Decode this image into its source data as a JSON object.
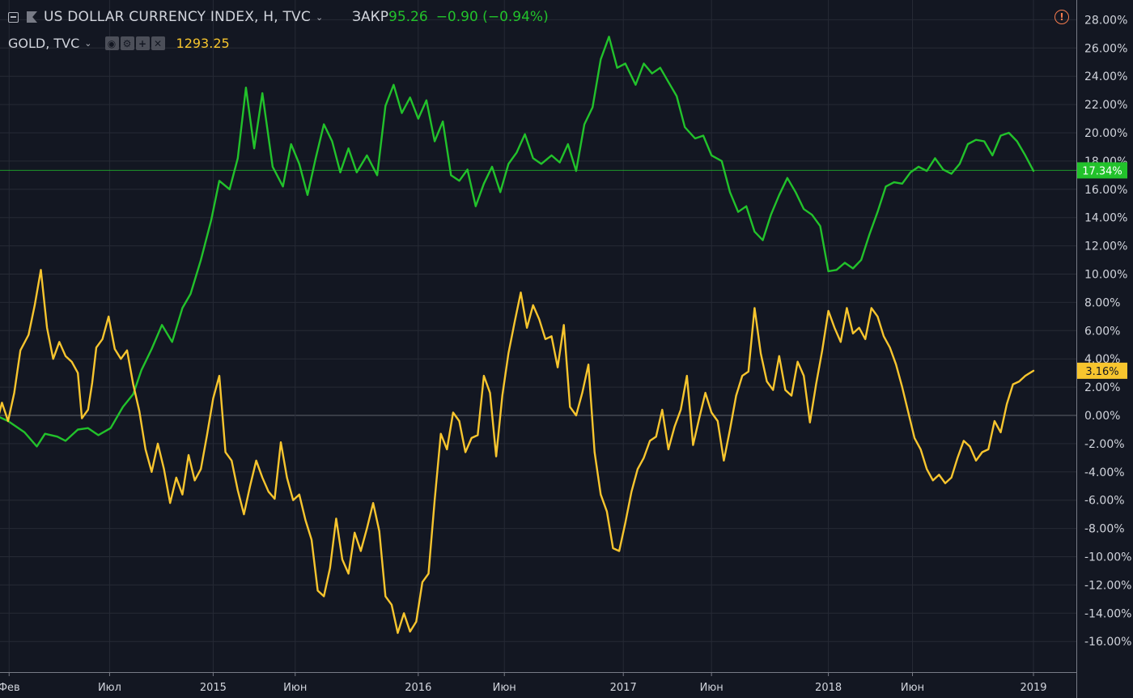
{
  "legend": {
    "main_symbol": "US DOLLAR CURRENCY INDEX, H, TVC",
    "close_label": "ЗАКР",
    "close_value": "95.26",
    "change": "−0.90 (−0.94%)",
    "compare_symbol": "GOLD, TVC",
    "compare_value": "1293.25",
    "compare_controls": [
      "eye-icon",
      "gear-icon",
      "plus-icon",
      "close-icon"
    ]
  },
  "alert_icon": "exclamation-circle-icon",
  "colors": {
    "background": "#131722",
    "grid": "#262a35",
    "dxy": "#22c22b",
    "gold": "#f7c52e",
    "axis_text": "#d1d4dc",
    "alert": "#f77c4e"
  },
  "chart_data": {
    "type": "line",
    "y_unit": "%",
    "ylim": [
      -17.5,
      28.8
    ],
    "y_ticks": [
      "28.00%",
      "26.00%",
      "24.00%",
      "22.00%",
      "20.00%",
      "18.00%",
      "16.00%",
      "14.00%",
      "12.00%",
      "10.00%",
      "8.00%",
      "6.00%",
      "4.00%",
      "2.00%",
      "0.00%",
      "-2.00%",
      "-4.00%",
      "-6.00%",
      "-8.00%",
      "-10.00%",
      "-12.00%",
      "-14.00%",
      "-16.00%"
    ],
    "x_ticks": [
      "Фев",
      "Июл",
      "2015",
      "Июн",
      "2016",
      "Июн",
      "2017",
      "Июн",
      "2018",
      "Июн",
      "2019"
    ],
    "x_tick_times": [
      0.05,
      4.95,
      10.0,
      14.0,
      20.0,
      24.2,
      30.0,
      34.3,
      40.0,
      44.1,
      50.0
    ],
    "xlim": [
      -0.6,
      51.9
    ],
    "grid": true,
    "last_labels": [
      {
        "series": "DXY",
        "value": 17.34,
        "text": "17.34%"
      },
      {
        "series": "GOLD",
        "value": 3.16,
        "text": "3.16%"
      }
    ],
    "series": [
      {
        "name": "US DOLLAR CURRENCY INDEX, H, TVC",
        "color": "#22c22b",
        "points": [
          [
            -0.6,
            0
          ],
          [
            0,
            -0.4
          ],
          [
            0.8,
            -1.2
          ],
          [
            1.4,
            -2.2
          ],
          [
            1.8,
            -1.3
          ],
          [
            2.4,
            -1.5
          ],
          [
            2.8,
            -1.8
          ],
          [
            3.4,
            -1.0
          ],
          [
            3.9,
            -0.9
          ],
          [
            4.4,
            -1.4
          ],
          [
            5.0,
            -0.9
          ],
          [
            5.6,
            0.6
          ],
          [
            6.1,
            1.5
          ],
          [
            6.5,
            3.2
          ],
          [
            7.0,
            4.7
          ],
          [
            7.5,
            6.4
          ],
          [
            8.0,
            5.2
          ],
          [
            8.5,
            7.6
          ],
          [
            8.9,
            8.6
          ],
          [
            9.4,
            11.0
          ],
          [
            9.9,
            13.8
          ],
          [
            10.3,
            16.6
          ],
          [
            10.8,
            16.0
          ],
          [
            11.2,
            18.2
          ],
          [
            11.6,
            23.2
          ],
          [
            12.0,
            18.9
          ],
          [
            12.4,
            22.8
          ],
          [
            12.9,
            17.6
          ],
          [
            13.4,
            16.2
          ],
          [
            13.8,
            19.2
          ],
          [
            14.2,
            17.8
          ],
          [
            14.6,
            15.6
          ],
          [
            15.0,
            18.2
          ],
          [
            15.4,
            20.6
          ],
          [
            15.8,
            19.4
          ],
          [
            16.2,
            17.2
          ],
          [
            16.6,
            18.9
          ],
          [
            17.0,
            17.2
          ],
          [
            17.5,
            18.4
          ],
          [
            18.0,
            17.0
          ],
          [
            18.4,
            21.9
          ],
          [
            18.8,
            23.4
          ],
          [
            19.2,
            21.4
          ],
          [
            19.6,
            22.5
          ],
          [
            20.0,
            21.0
          ],
          [
            20.4,
            22.3
          ],
          [
            20.8,
            19.4
          ],
          [
            21.2,
            20.8
          ],
          [
            21.6,
            17.0
          ],
          [
            22.0,
            16.6
          ],
          [
            22.4,
            17.4
          ],
          [
            22.8,
            14.8
          ],
          [
            23.2,
            16.4
          ],
          [
            23.6,
            17.6
          ],
          [
            24.0,
            15.8
          ],
          [
            24.4,
            17.8
          ],
          [
            24.8,
            18.6
          ],
          [
            25.2,
            19.9
          ],
          [
            25.6,
            18.2
          ],
          [
            26.0,
            17.8
          ],
          [
            26.5,
            18.4
          ],
          [
            26.9,
            17.9
          ],
          [
            27.3,
            19.2
          ],
          [
            27.7,
            17.3
          ],
          [
            28.1,
            20.6
          ],
          [
            28.5,
            21.8
          ],
          [
            28.9,
            25.2
          ],
          [
            29.3,
            26.8
          ],
          [
            29.7,
            24.6
          ],
          [
            30.1,
            24.9
          ],
          [
            30.6,
            23.4
          ],
          [
            31.0,
            24.9
          ],
          [
            31.4,
            24.2
          ],
          [
            31.8,
            24.6
          ],
          [
            32.2,
            23.6
          ],
          [
            32.6,
            22.6
          ],
          [
            33.0,
            20.4
          ],
          [
            33.5,
            19.6
          ],
          [
            33.9,
            19.8
          ],
          [
            34.3,
            18.4
          ],
          [
            34.8,
            18.0
          ],
          [
            35.2,
            15.8
          ],
          [
            35.6,
            14.4
          ],
          [
            36.0,
            14.8
          ],
          [
            36.4,
            13.0
          ],
          [
            36.8,
            12.4
          ],
          [
            37.2,
            14.2
          ],
          [
            37.6,
            15.6
          ],
          [
            38.0,
            16.8
          ],
          [
            38.4,
            15.8
          ],
          [
            38.8,
            14.6
          ],
          [
            39.2,
            14.2
          ],
          [
            39.6,
            13.4
          ],
          [
            40.0,
            10.2
          ],
          [
            40.4,
            10.3
          ],
          [
            40.8,
            10.8
          ],
          [
            41.2,
            10.4
          ],
          [
            41.6,
            11.0
          ],
          [
            42.0,
            12.8
          ],
          [
            42.4,
            14.4
          ],
          [
            42.8,
            16.2
          ],
          [
            43.2,
            16.5
          ],
          [
            43.6,
            16.4
          ],
          [
            44.0,
            17.2
          ],
          [
            44.4,
            17.6
          ],
          [
            44.8,
            17.3
          ],
          [
            45.2,
            18.2
          ],
          [
            45.6,
            17.4
          ],
          [
            46.0,
            17.1
          ],
          [
            46.4,
            17.8
          ],
          [
            46.8,
            19.2
          ],
          [
            47.2,
            19.5
          ],
          [
            47.6,
            19.4
          ],
          [
            48.0,
            18.4
          ],
          [
            48.4,
            19.8
          ],
          [
            48.8,
            20.0
          ],
          [
            49.2,
            19.4
          ],
          [
            49.6,
            18.4
          ],
          [
            50.0,
            17.3
          ]
        ]
      },
      {
        "name": "GOLD, TVC",
        "color": "#f7c52e",
        "points": [
          [
            -0.6,
            -0.8
          ],
          [
            -0.3,
            0.9
          ],
          [
            0.0,
            -0.4
          ],
          [
            0.3,
            1.6
          ],
          [
            0.6,
            4.6
          ],
          [
            1.0,
            5.7
          ],
          [
            1.3,
            7.8
          ],
          [
            1.6,
            10.3
          ],
          [
            1.9,
            6.2
          ],
          [
            2.2,
            4.0
          ],
          [
            2.5,
            5.2
          ],
          [
            2.8,
            4.2
          ],
          [
            3.1,
            3.8
          ],
          [
            3.4,
            3.0
          ],
          [
            3.6,
            -0.2
          ],
          [
            3.9,
            0.4
          ],
          [
            4.1,
            2.3
          ],
          [
            4.3,
            4.8
          ],
          [
            4.6,
            5.4
          ],
          [
            4.9,
            7.0
          ],
          [
            5.2,
            4.7
          ],
          [
            5.5,
            4.0
          ],
          [
            5.8,
            4.6
          ],
          [
            6.1,
            2.2
          ],
          [
            6.4,
            0.3
          ],
          [
            6.7,
            -2.4
          ],
          [
            7.0,
            -4.0
          ],
          [
            7.3,
            -2.0
          ],
          [
            7.6,
            -3.8
          ],
          [
            7.9,
            -6.2
          ],
          [
            8.2,
            -4.4
          ],
          [
            8.5,
            -5.6
          ],
          [
            8.8,
            -2.8
          ],
          [
            9.1,
            -4.6
          ],
          [
            9.4,
            -3.8
          ],
          [
            9.7,
            -1.4
          ],
          [
            10.0,
            1.2
          ],
          [
            10.3,
            2.8
          ],
          [
            10.6,
            -2.6
          ],
          [
            10.9,
            -3.2
          ],
          [
            11.2,
            -5.3
          ],
          [
            11.5,
            -7.0
          ],
          [
            11.8,
            -5.0
          ],
          [
            12.1,
            -3.2
          ],
          [
            12.4,
            -4.4
          ],
          [
            12.7,
            -5.4
          ],
          [
            13.0,
            -5.9
          ],
          [
            13.3,
            -1.9
          ],
          [
            13.6,
            -4.4
          ],
          [
            13.9,
            -6.0
          ],
          [
            14.2,
            -5.6
          ],
          [
            14.5,
            -7.4
          ],
          [
            14.8,
            -8.8
          ],
          [
            15.1,
            -12.4
          ],
          [
            15.4,
            -12.8
          ],
          [
            15.7,
            -10.8
          ],
          [
            16.0,
            -7.3
          ],
          [
            16.3,
            -10.2
          ],
          [
            16.6,
            -11.2
          ],
          [
            16.9,
            -8.3
          ],
          [
            17.2,
            -9.6
          ],
          [
            17.5,
            -8.0
          ],
          [
            17.8,
            -6.2
          ],
          [
            18.1,
            -8.2
          ],
          [
            18.4,
            -12.8
          ],
          [
            18.7,
            -13.4
          ],
          [
            19.0,
            -15.4
          ],
          [
            19.3,
            -14.0
          ],
          [
            19.6,
            -15.3
          ],
          [
            19.9,
            -14.6
          ],
          [
            20.2,
            -11.8
          ],
          [
            20.5,
            -11.2
          ],
          [
            20.8,
            -6.0
          ],
          [
            21.1,
            -1.3
          ],
          [
            21.4,
            -2.4
          ],
          [
            21.7,
            0.2
          ],
          [
            22.0,
            -0.4
          ],
          [
            22.3,
            -2.6
          ],
          [
            22.6,
            -1.6
          ],
          [
            22.9,
            -1.4
          ],
          [
            23.2,
            2.8
          ],
          [
            23.5,
            1.6
          ],
          [
            23.8,
            -2.9
          ],
          [
            24.1,
            1.4
          ],
          [
            24.4,
            4.4
          ],
          [
            24.7,
            6.6
          ],
          [
            25.0,
            8.7
          ],
          [
            25.3,
            6.2
          ],
          [
            25.6,
            7.8
          ],
          [
            25.9,
            6.8
          ],
          [
            26.2,
            5.4
          ],
          [
            26.5,
            5.6
          ],
          [
            26.8,
            3.4
          ],
          [
            27.1,
            6.4
          ],
          [
            27.4,
            0.6
          ],
          [
            27.7,
            0.0
          ],
          [
            28.0,
            1.6
          ],
          [
            28.3,
            3.6
          ],
          [
            28.6,
            -2.6
          ],
          [
            28.9,
            -5.6
          ],
          [
            29.2,
            -6.8
          ],
          [
            29.5,
            -9.4
          ],
          [
            29.8,
            -9.6
          ],
          [
            30.1,
            -7.6
          ],
          [
            30.4,
            -5.4
          ],
          [
            30.7,
            -3.8
          ],
          [
            31.0,
            -3.0
          ],
          [
            31.3,
            -1.8
          ],
          [
            31.6,
            -1.5
          ],
          [
            31.9,
            0.4
          ],
          [
            32.2,
            -2.4
          ],
          [
            32.5,
            -0.8
          ],
          [
            32.8,
            0.4
          ],
          [
            33.1,
            2.8
          ],
          [
            33.4,
            -2.1
          ],
          [
            33.7,
            -0.2
          ],
          [
            34.0,
            1.6
          ],
          [
            34.3,
            0.2
          ],
          [
            34.6,
            -0.4
          ],
          [
            34.9,
            -3.2
          ],
          [
            35.2,
            -1.0
          ],
          [
            35.5,
            1.4
          ],
          [
            35.8,
            2.8
          ],
          [
            36.1,
            3.1
          ],
          [
            36.4,
            7.6
          ],
          [
            36.7,
            4.4
          ],
          [
            37.0,
            2.4
          ],
          [
            37.3,
            1.8
          ],
          [
            37.6,
            4.2
          ],
          [
            37.9,
            1.8
          ],
          [
            38.2,
            1.4
          ],
          [
            38.5,
            3.8
          ],
          [
            38.8,
            2.8
          ],
          [
            39.1,
            -0.5
          ],
          [
            39.4,
            2.2
          ],
          [
            39.7,
            4.6
          ],
          [
            40.0,
            7.4
          ],
          [
            40.3,
            6.2
          ],
          [
            40.6,
            5.2
          ],
          [
            40.9,
            7.6
          ],
          [
            41.2,
            5.8
          ],
          [
            41.5,
            6.2
          ],
          [
            41.8,
            5.4
          ],
          [
            42.1,
            7.6
          ],
          [
            42.4,
            7.0
          ],
          [
            42.7,
            5.6
          ],
          [
            43.0,
            4.8
          ],
          [
            43.3,
            3.6
          ],
          [
            43.6,
            2.0
          ],
          [
            43.9,
            0.2
          ],
          [
            44.2,
            -1.6
          ],
          [
            44.5,
            -2.4
          ],
          [
            44.8,
            -3.8
          ],
          [
            45.1,
            -4.6
          ],
          [
            45.4,
            -4.2
          ],
          [
            45.7,
            -4.8
          ],
          [
            46.0,
            -4.4
          ],
          [
            46.3,
            -3.0
          ],
          [
            46.6,
            -1.8
          ],
          [
            46.9,
            -2.2
          ],
          [
            47.2,
            -3.2
          ],
          [
            47.5,
            -2.6
          ],
          [
            47.8,
            -2.4
          ],
          [
            48.1,
            -0.4
          ],
          [
            48.4,
            -1.2
          ],
          [
            48.7,
            0.8
          ],
          [
            49.0,
            2.2
          ],
          [
            49.3,
            2.4
          ],
          [
            49.6,
            2.8
          ],
          [
            50.0,
            3.16
          ]
        ]
      }
    ]
  }
}
